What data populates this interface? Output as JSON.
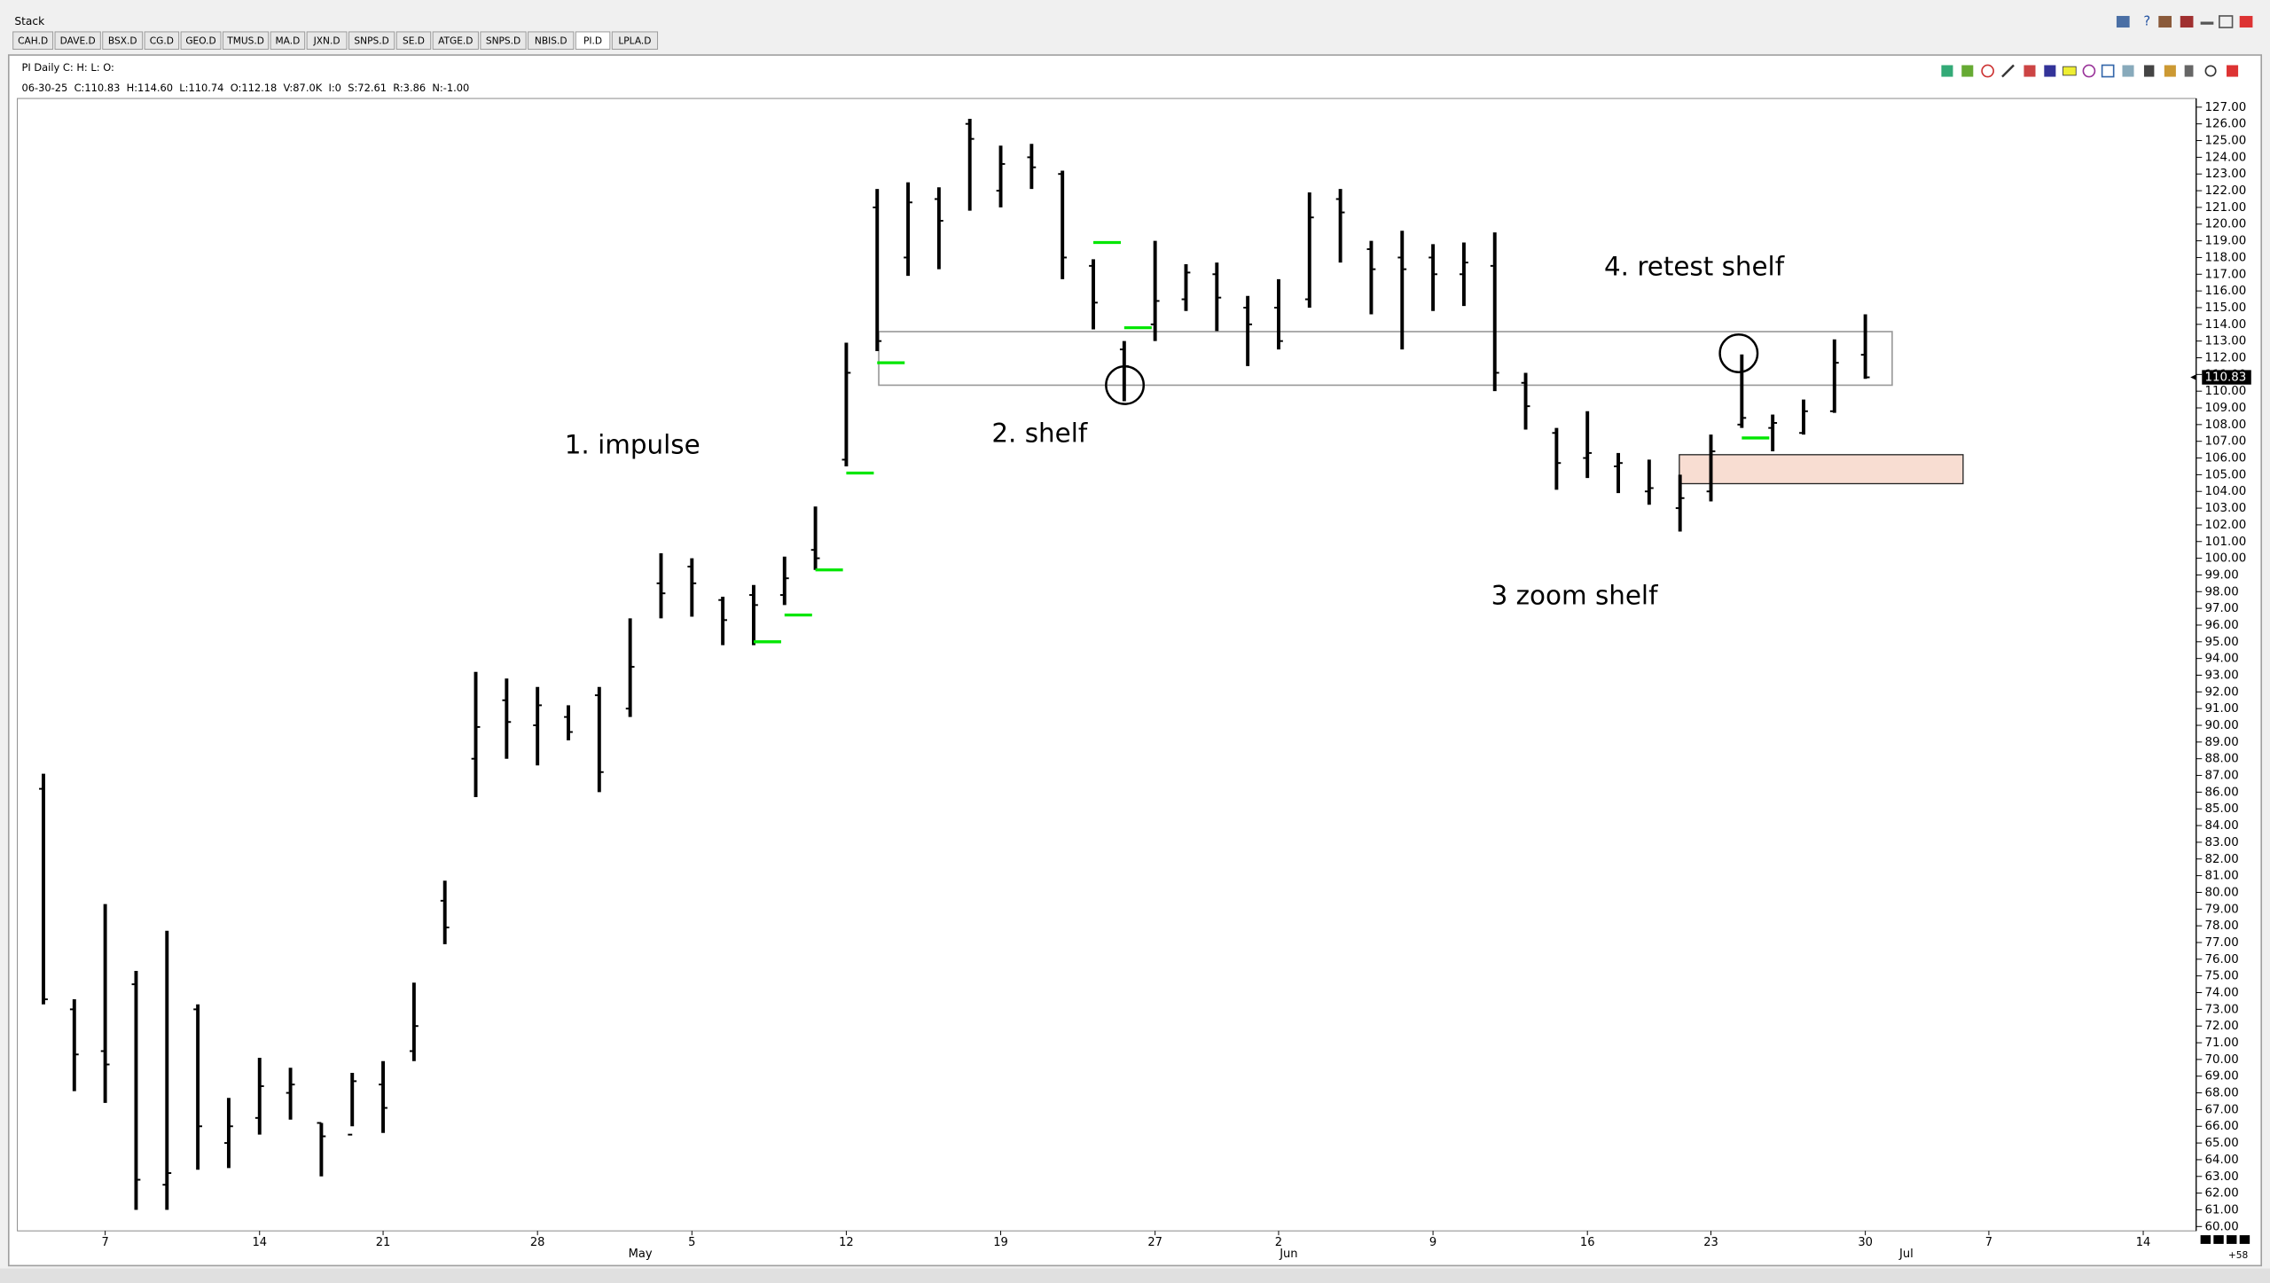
{
  "window": {
    "title": "Stack",
    "tabs": [
      "CAH.D",
      "DAVE.D",
      "BSX.D",
      "CG.D",
      "GEO.D",
      "TMUS.D",
      "MA.D",
      "JXN.D",
      "SNPS.D",
      "SE.D",
      "ATGE.D",
      "SNPS.D",
      "NBIS.D",
      "PI.D",
      "LPLA.D"
    ],
    "active_tab": 13,
    "corner_label": "+58"
  },
  "chart_data": {
    "type": "ohlc",
    "title": "PI Daily C: H: L: O:",
    "info_line": "06-30-25  C:110.83  H:114.60  L:110.74  O:112.18  V:87.0K  I:0  S:72.61  R:3.86  N:-1.00",
    "categories": [
      null,
      null,
      "7",
      null,
      null,
      null,
      null,
      "14",
      null,
      null,
      null,
      "21",
      null,
      null,
      null,
      null,
      "28",
      null,
      null,
      null,
      null,
      "5",
      null,
      null,
      null,
      null,
      "12",
      null,
      null,
      null,
      null,
      "19",
      null,
      null,
      null,
      null,
      "27",
      null,
      null,
      null,
      "2",
      null,
      null,
      null,
      null,
      "9",
      null,
      null,
      null,
      null,
      "16",
      null,
      null,
      null,
      "23",
      null,
      null,
      null,
      null,
      "30",
      null,
      null,
      null,
      "7",
      null,
      null,
      null,
      null,
      "14"
    ],
    "month_labels": [
      {
        "value": 19,
        "label": "May"
      },
      {
        "value": 40,
        "label": "Jun"
      },
      {
        "value": 60,
        "label": "Jul"
      }
    ],
    "open": [
      86.2,
      73.0,
      70.5,
      74.5,
      62.5,
      73.0,
      65.0,
      66.5,
      68.0,
      66.2,
      65.5,
      68.5,
      70.5,
      79.5,
      88.0,
      91.5,
      90.0,
      90.5,
      91.8,
      91.0,
      98.5,
      99.5,
      97.5,
      97.8,
      97.8,
      100.5,
      105.9,
      121.0,
      118.0,
      121.5,
      126.0,
      122.0,
      124.0,
      123.0,
      117.5,
      112.5,
      114.0,
      115.5,
      117.0,
      115.0,
      115.0,
      115.5,
      121.5,
      118.5,
      118.0,
      118.0,
      117.0,
      117.5,
      110.5,
      107.5,
      106.0,
      105.5,
      104.0,
      103.0,
      104.0,
      108.0,
      107.8,
      107.5,
      108.8,
      112.18,
      null,
      null,
      null,
      null,
      null,
      null,
      null,
      null,
      null
    ],
    "high": [
      87.1,
      73.6,
      79.3,
      75.3,
      77.7,
      73.3,
      67.7,
      70.1,
      69.5,
      66.2,
      69.2,
      69.9,
      74.6,
      80.7,
      93.2,
      92.8,
      92.3,
      91.2,
      92.3,
      96.4,
      100.3,
      100.0,
      97.7,
      98.4,
      100.1,
      103.1,
      112.9,
      122.1,
      122.5,
      122.2,
      126.3,
      124.7,
      124.8,
      123.2,
      117.9,
      113.0,
      119.0,
      117.6,
      117.7,
      115.7,
      116.7,
      121.9,
      122.1,
      119.0,
      119.6,
      118.8,
      118.9,
      119.5,
      111.1,
      107.8,
      108.8,
      106.3,
      105.9,
      105.0,
      107.4,
      112.2,
      108.6,
      109.5,
      113.1,
      114.6,
      null,
      null,
      null,
      null,
      null,
      null,
      null,
      null,
      null
    ],
    "low": [
      73.3,
      68.1,
      67.4,
      61.0,
      61.0,
      63.4,
      63.5,
      65.5,
      66.4,
      63.0,
      66.0,
      65.6,
      69.9,
      76.9,
      85.7,
      88.0,
      87.6,
      89.1,
      86.0,
      90.5,
      96.4,
      96.5,
      94.8,
      94.8,
      97.2,
      99.3,
      105.5,
      112.4,
      116.9,
      117.3,
      120.8,
      121.0,
      122.1,
      116.7,
      113.7,
      109.4,
      113.0,
      114.8,
      113.6,
      111.5,
      112.5,
      115.0,
      117.7,
      114.6,
      112.5,
      114.8,
      115.1,
      110.0,
      107.7,
      104.1,
      104.8,
      103.9,
      103.2,
      101.6,
      103.4,
      107.8,
      106.4,
      107.4,
      108.7,
      110.74,
      null,
      null,
      null,
      null,
      null,
      null,
      null,
      null,
      null
    ],
    "close": [
      73.6,
      70.3,
      69.7,
      62.8,
      63.2,
      66.0,
      66.0,
      68.4,
      68.5,
      65.4,
      68.7,
      67.1,
      72.0,
      77.9,
      89.9,
      90.2,
      91.2,
      89.6,
      87.2,
      93.5,
      97.9,
      98.5,
      96.3,
      97.2,
      98.8,
      100.0,
      111.1,
      113.0,
      121.3,
      120.2,
      125.1,
      123.6,
      123.4,
      118.0,
      115.3,
      111.5,
      115.4,
      117.1,
      115.6,
      114.0,
      113.0,
      120.4,
      120.7,
      117.3,
      117.3,
      117.0,
      117.7,
      111.1,
      109.1,
      105.7,
      106.3,
      105.7,
      104.2,
      103.6,
      106.4,
      108.4,
      108.1,
      108.8,
      111.7,
      110.83,
      null,
      null,
      null,
      null,
      null,
      null,
      null,
      null,
      null
    ],
    "bar_color": "#000000",
    "markers": {
      "color": "#00e600",
      "values": [
        null,
        null,
        null,
        null,
        null,
        null,
        null,
        null,
        null,
        null,
        null,
        null,
        null,
        null,
        null,
        null,
        null,
        null,
        null,
        null,
        null,
        null,
        null,
        95.0,
        96.6,
        99.3,
        105.1,
        111.7,
        null,
        null,
        null,
        null,
        null,
        null,
        118.9,
        113.8,
        null,
        null,
        null,
        null,
        null,
        null,
        null,
        null,
        null,
        null,
        null,
        null,
        null,
        null,
        null,
        null,
        null,
        null,
        null,
        107.2,
        null,
        null,
        null,
        null,
        null,
        null,
        null,
        null,
        null,
        null,
        null,
        null,
        null
      ]
    },
    "annotations": [
      "1. impulse",
      "2. shelf",
      "3 zoom shelf",
      "4. retest shelf"
    ],
    "ylim": [
      59.74,
      127.52
    ],
    "yticks": [
      {
        "value": 60,
        "label": "60.00"
      },
      {
        "value": 61,
        "label": "61.00"
      },
      {
        "value": 62,
        "label": "62.00"
      },
      {
        "value": 63,
        "label": "63.00"
      },
      {
        "value": 64,
        "label": "64.00"
      },
      {
        "value": 65,
        "label": "65.00"
      },
      {
        "value": 66,
        "label": "66.00"
      },
      {
        "value": 67,
        "label": "67.00"
      },
      {
        "value": 68,
        "label": "68.00"
      },
      {
        "value": 69,
        "label": "69.00"
      },
      {
        "value": 70,
        "label": "70.00"
      },
      {
        "value": 71,
        "label": "71.00"
      },
      {
        "value": 72,
        "label": "72.00"
      },
      {
        "value": 73,
        "label": "73.00"
      },
      {
        "value": 74,
        "label": "74.00"
      },
      {
        "value": 75,
        "label": "75.00"
      },
      {
        "value": 76,
        "label": "76.00"
      },
      {
        "value": 77,
        "label": "77.00"
      },
      {
        "value": 78,
        "label": "78.00"
      },
      {
        "value": 79,
        "label": "79.00"
      },
      {
        "value": 80,
        "label": "80.00"
      },
      {
        "value": 81,
        "label": "81.00"
      },
      {
        "value": 82,
        "label": "82.00"
      },
      {
        "value": 83,
        "label": "83.00"
      },
      {
        "value": 84,
        "label": "84.00"
      },
      {
        "value": 85,
        "label": "85.00"
      },
      {
        "value": 86,
        "label": "86.00"
      },
      {
        "value": 87,
        "label": "87.00"
      },
      {
        "value": 88,
        "label": "88.00"
      },
      {
        "value": 89,
        "label": "89.00"
      },
      {
        "value": 90,
        "label": "90.00"
      },
      {
        "value": 91,
        "label": "91.00"
      },
      {
        "value": 92,
        "label": "92.00"
      },
      {
        "value": 93,
        "label": "93.00"
      },
      {
        "value": 94,
        "label": "94.00"
      },
      {
        "value": 95,
        "label": "95.00"
      },
      {
        "value": 96,
        "label": "96.00"
      },
      {
        "value": 97,
        "label": "97.00"
      },
      {
        "value": 98,
        "label": "98.00"
      },
      {
        "value": 99,
        "label": "99.00"
      },
      {
        "value": 100,
        "label": "100.00"
      },
      {
        "value": 101,
        "label": "101.00"
      },
      {
        "value": 102,
        "label": "102.00"
      },
      {
        "value": 103,
        "label": "103.00"
      },
      {
        "value": 104,
        "label": "104.00"
      },
      {
        "value": 105,
        "label": "105.00"
      },
      {
        "value": 106,
        "label": "106.00"
      },
      {
        "value": 107,
        "label": "107.00"
      },
      {
        "value": 108,
        "label": "108.00"
      },
      {
        "value": 109,
        "label": "109.00"
      },
      {
        "value": 110,
        "label": "110.00"
      },
      {
        "value": 111,
        "label": "111.00"
      },
      {
        "value": 112,
        "label": "112.00"
      },
      {
        "value": 113,
        "label": "113.00"
      },
      {
        "value": 114,
        "label": "114.00"
      },
      {
        "value": 115,
        "label": "115.00"
      },
      {
        "value": 116,
        "label": "116.00"
      },
      {
        "value": 117,
        "label": "117.00"
      },
      {
        "value": 118,
        "label": "118.00"
      },
      {
        "value": 119,
        "label": "119.00"
      },
      {
        "value": 120,
        "label": "120.00"
      },
      {
        "value": 121,
        "label": "121.00"
      },
      {
        "value": 122,
        "label": "122.00"
      },
      {
        "value": 123,
        "label": "123.00"
      },
      {
        "value": 124,
        "label": "124.00"
      },
      {
        "value": 125,
        "label": "125.00"
      },
      {
        "value": 126,
        "label": "126.00"
      },
      {
        "value": 127,
        "label": "127.00"
      }
    ],
    "grid": false
  }
}
